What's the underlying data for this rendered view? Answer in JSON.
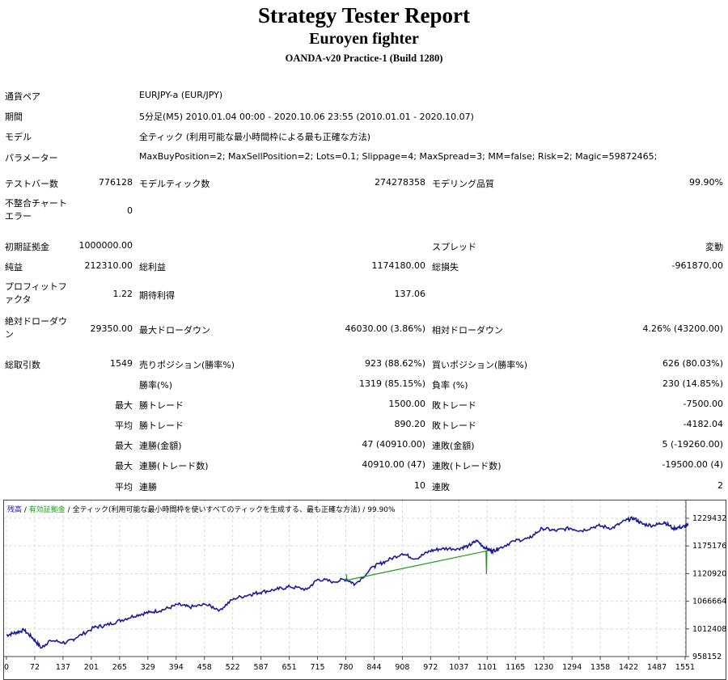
{
  "header": {
    "title": "Strategy Tester Report",
    "ea_name": "Euroyen fighter",
    "server": "OANDA-v20 Practice-1 (Build 1280)"
  },
  "info": [
    {
      "label": "通貨ペア",
      "value": "EURJPY-a (EUR/JPY)"
    },
    {
      "label": "期間",
      "value": "5分足(M5) 2010.01.04 00:00 - 2020.10.06 23:55 (2010.01.01 - 2020.10.07)"
    },
    {
      "label": "モデル",
      "value": "全ティック (利用可能な最小時間枠による最も正確な方法)"
    },
    {
      "label": "パラメーター",
      "value": "MaxBuyPosition=2; MaxSellPosition=2; Lots=0.1; Slippage=4; MaxSpread=3; MM=false; Risk=2; Magic=59872465;"
    }
  ],
  "stats": {
    "bars_label": "テストバー数",
    "bars": "776128",
    "ticks_label": "モデルティック数",
    "ticks": "274278358",
    "quality_label": "モデリング品質",
    "quality": "99.90%",
    "mismatch_label": "不整合チャートエラー",
    "mismatch": "0",
    "deposit_label": "初期証拠金",
    "deposit": "1000000.00",
    "spread_label": "スプレッド",
    "spread": "変動",
    "net_label": "純益",
    "net": "212310.00",
    "gross_profit_label": "総利益",
    "gross_profit": "1174180.00",
    "gross_loss_label": "総損失",
    "gross_loss": "-961870.00",
    "pf_label": "プロフィットファクタ",
    "pf": "1.22",
    "expected_label": "期待利得",
    "expected": "137.06",
    "abs_dd_label": "絶対ドローダウン",
    "abs_dd": "29350.00",
    "max_dd_label": "最大ドローダウン",
    "max_dd": "46030.00 (3.86%)",
    "rel_dd_label": "相対ドローダウン",
    "rel_dd": "4.26% (43200.00)",
    "total_label": "総取引数",
    "total": "1549",
    "short_label": "売りポジション(勝率%)",
    "short": "923 (88.62%)",
    "long_label": "買いポジション(勝率%)",
    "long": "626 (80.03%)",
    "win_pct_label": "勝率(%)",
    "win_pct": "1319 (85.15%)",
    "loss_pct_label": "負率 (%)",
    "loss_pct": "230 (14.85%)",
    "max1": "最大",
    "largest_win_label": "勝トレード",
    "largest_win": "1500.00",
    "largest_loss_label": "敗トレード",
    "largest_loss": "-7500.00",
    "avg1": "平均",
    "avg_win_label": "勝トレード",
    "avg_win": "890.20",
    "avg_loss_label": "敗トレード",
    "avg_loss": "-4182.04",
    "max2": "最大",
    "max_cons_win_label": "連勝(金額)",
    "max_cons_win": "47 (40910.00)",
    "max_cons_loss_label": "連敗(金額)",
    "max_cons_loss": "5 (-19260.00)",
    "max3": "最大",
    "max_cons_profit_label": "連勝(トレード数)",
    "max_cons_profit": "40910.00 (47)",
    "max_cons_lossamt_label": "連敗(トレード数)",
    "max_cons_lossamt": "-19500.00 (4)",
    "avg2": "平均",
    "avg_cons_win_label": "連勝",
    "avg_cons_win": "10",
    "avg_cons_loss_label": "連敗",
    "avg_cons_loss": "2"
  },
  "legend": {
    "balance": "残高",
    "sep1": " / ",
    "equity": "有効証拠金",
    "sep2": " / ",
    "model": "全ティック(利用可能な最小時間枠を使いすべてのティックを生成する、最も正確な方法) / 99.90%"
  },
  "chart_data": {
    "type": "line",
    "x_ticks": [
      "0",
      "72",
      "137",
      "201",
      "265",
      "329",
      "394",
      "458",
      "522",
      "587",
      "651",
      "715",
      "780",
      "844",
      "908",
      "972",
      "1037",
      "1101",
      "1165",
      "1230",
      "1294",
      "1358",
      "1422",
      "1487",
      "1551"
    ],
    "y_ticks": [
      "1229432",
      "1175176",
      "1120920",
      "1066664",
      "1012408",
      "958152"
    ],
    "xlim": [
      0,
      1560
    ],
    "ylim": [
      958152,
      1250000
    ],
    "grid": true,
    "series": [
      {
        "name": "残高",
        "color": "#1a1a9a",
        "x": [
          0,
          20,
          40,
          60,
          80,
          100,
          137,
          160,
          201,
          230,
          265,
          300,
          329,
          360,
          394,
          420,
          458,
          490,
          522,
          560,
          587,
          620,
          651,
          690,
          715,
          750,
          780,
          800,
          844,
          870,
          908,
          940,
          972,
          1000,
          1037,
          1060,
          1080,
          1101,
          1115,
          1130,
          1165,
          1200,
          1230,
          1260,
          1294,
          1320,
          1358,
          1390,
          1422,
          1440,
          1460,
          1487,
          1510,
          1530,
          1551,
          1565
        ],
        "y": [
          1000000,
          1005000,
          1010000,
          995000,
          975000,
          990000,
          985000,
          995000,
          1015000,
          1020000,
          1030000,
          1040000,
          1045000,
          1050000,
          1060000,
          1055000,
          1060000,
          1050000,
          1072000,
          1080000,
          1085000,
          1090000,
          1095000,
          1090000,
          1110000,
          1105000,
          1110000,
          1100000,
          1135000,
          1145000,
          1160000,
          1150000,
          1165000,
          1170000,
          1170000,
          1175000,
          1185000,
          1170000,
          1165000,
          1170000,
          1185000,
          1190000,
          1210000,
          1205000,
          1210000,
          1205000,
          1215000,
          1210000,
          1225000,
          1230000,
          1218000,
          1215000,
          1222000,
          1210000,
          1212000,
          1215000
        ]
      },
      {
        "name": "有効証拠金",
        "color": "#1f9a1f",
        "x": [
          780,
          782,
          1101,
          1102,
          1103
        ],
        "y": [
          1120000,
          1108000,
          1165000,
          1120000,
          1168000
        ]
      }
    ]
  }
}
